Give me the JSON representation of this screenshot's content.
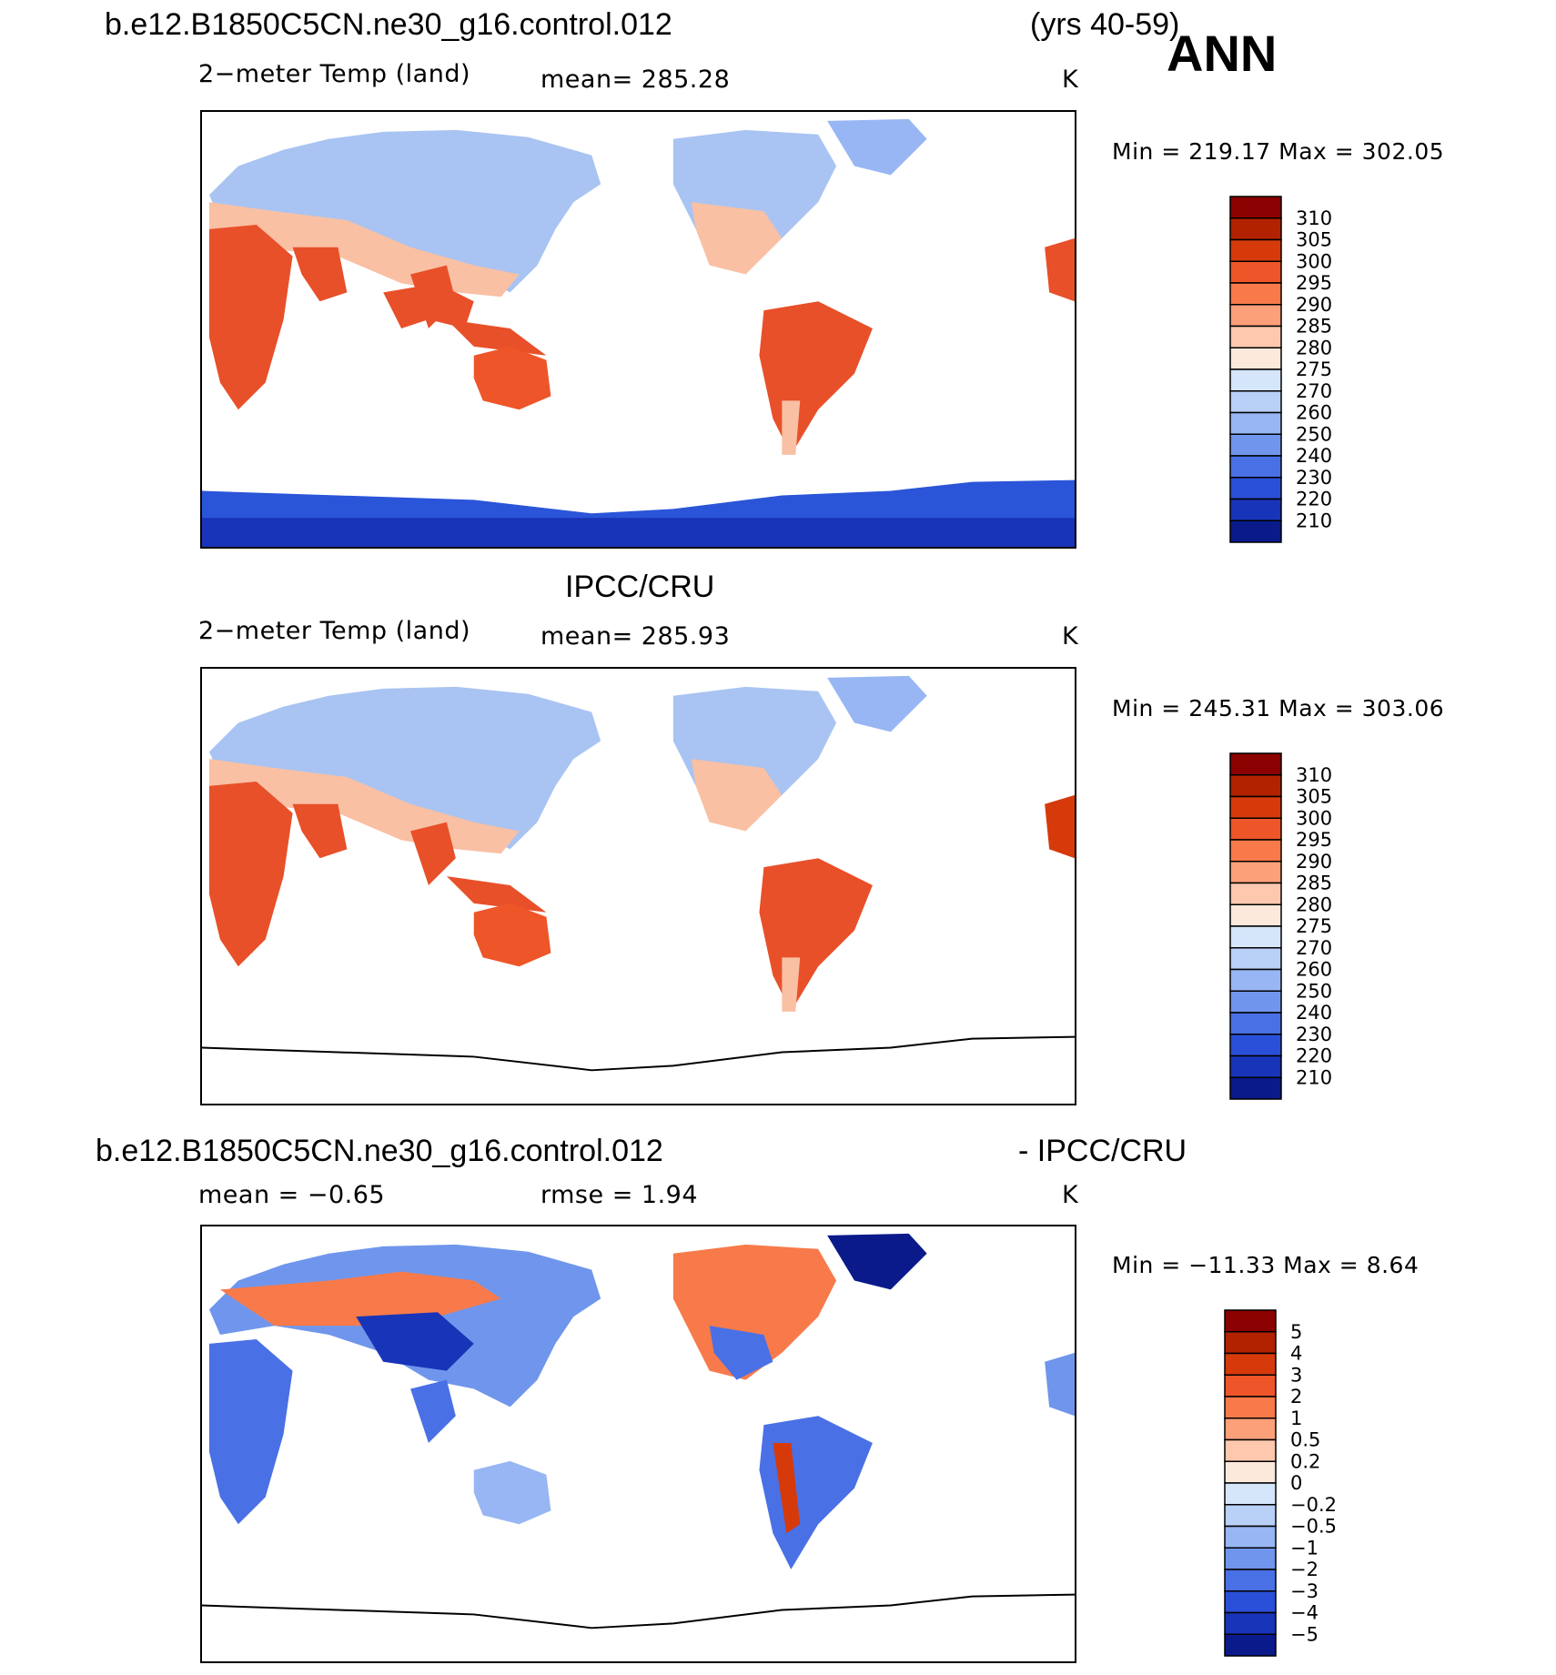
{
  "header": {
    "case_name": "b.e12.B1850C5CN.ne30_g16.control.012",
    "years": "(yrs 40-59)",
    "season": "ANN"
  },
  "panels": [
    {
      "title": "",
      "variable": "2−meter Temp (land)",
      "stat1": "mean=  285.28",
      "units": "K",
      "minmax": "Min  =  219.17  Max  =  302.05",
      "antarctica": "model"
    },
    {
      "title": "IPCC/CRU",
      "variable": "2−meter Temp (land)",
      "stat1": "mean=  285.93",
      "units": "K",
      "minmax": "Min  =  245.31  Max  =  303.06",
      "antarctica": "none"
    },
    {
      "title_left": "b.e12.B1850C5CN.ne30_g16.control.012",
      "title_right": "- IPCC/CRU",
      "stat1": "mean  =    −0.65",
      "stat2": "rmse  =      1.94",
      "units": "K",
      "minmax": "Min  =  −11.33  Max  =      8.64",
      "antarctica": "none"
    }
  ],
  "colorbars": {
    "temperature": {
      "labels": [
        "310",
        "305",
        "300",
        "295",
        "290",
        "285",
        "280",
        "275",
        "270",
        "260",
        "250",
        "240",
        "230",
        "220",
        "210"
      ],
      "colors": [
        "#8b0000",
        "#b22200",
        "#d63a0a",
        "#ee5528",
        "#f87a4a",
        "#fca07a",
        "#fdc8ad",
        "#fde9dc",
        "#d5e6fb",
        "#b9d0f7",
        "#97b6f3",
        "#6f96ec",
        "#4a70e6",
        "#2a4fd8",
        "#1834b8",
        "#0a1a8a"
      ]
    },
    "difference": {
      "labels": [
        "5",
        "4",
        "3",
        "2",
        "1",
        "0.5",
        "0.2",
        "0",
        "−0.2",
        "−0.5",
        "−1",
        "−2",
        "−3",
        "−4",
        "−5"
      ],
      "colors": [
        "#8b0000",
        "#b22200",
        "#d63a0a",
        "#ee5528",
        "#f87a4a",
        "#fca07a",
        "#fdc8ad",
        "#fde9dc",
        "#d5e6fb",
        "#b9d0f7",
        "#97b6f3",
        "#6f96ec",
        "#4a70e6",
        "#2a4fd8",
        "#1834b8",
        "#0a1a8a"
      ]
    }
  },
  "colors": {
    "hot": "#e8502a",
    "warm": "#f5a27c",
    "cool": "#a9c4f2",
    "cold": "#2a55d8",
    "frame": "#000000"
  }
}
